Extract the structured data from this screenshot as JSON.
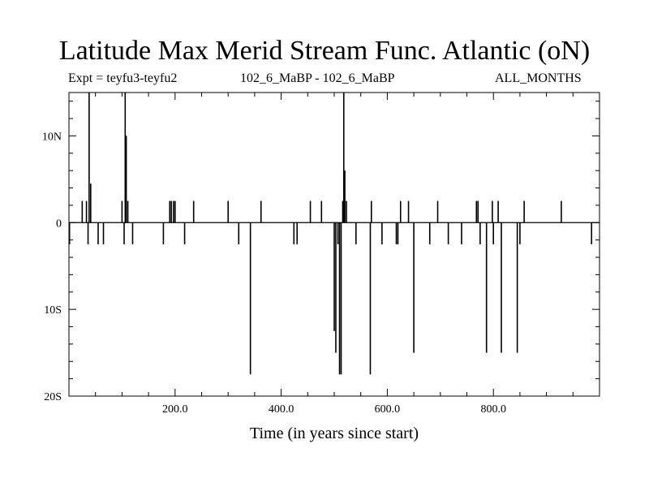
{
  "header": {
    "title": "Latitude Max Merid Stream Func. Atlantic (oN)",
    "expt": "Expt = teyfu3-teyfu2",
    "runs": "102_6_MaBP - 102_6_MaBP",
    "months": "ALL_MONTHS"
  },
  "chart_data": {
    "type": "line",
    "title": "Latitude Max Merid Stream Func. Atlantic (oN)",
    "xlabel": "Time (in years since start)",
    "ylabel": "",
    "xlim": [
      0,
      1000
    ],
    "ylim": [
      -20,
      15
    ],
    "xticks": [
      {
        "value": 200,
        "label": "200.0"
      },
      {
        "value": 400,
        "label": "400.0"
      },
      {
        "value": 600,
        "label": "600.0"
      },
      {
        "value": 800,
        "label": "800.0"
      }
    ],
    "yticks": [
      {
        "value": 10,
        "label": "10N"
      },
      {
        "value": 0,
        "label": "0"
      },
      {
        "value": -10,
        "label": "10S"
      },
      {
        "value": -20,
        "label": "20S"
      }
    ],
    "series": [
      {
        "name": "teyfu3-teyfu2",
        "spikes": [
          {
            "x": 1,
            "y": -2.5
          },
          {
            "x": 25,
            "y": 2.5
          },
          {
            "x": 33,
            "y": 2.5
          },
          {
            "x": 36,
            "y": -2.5
          },
          {
            "x": 38,
            "y": 15
          },
          {
            "x": 41,
            "y": 4.5
          },
          {
            "x": 55,
            "y": -2.5
          },
          {
            "x": 65,
            "y": -2.5
          },
          {
            "x": 100,
            "y": 2.5
          },
          {
            "x": 104,
            "y": -2.5
          },
          {
            "x": 106,
            "y": 15
          },
          {
            "x": 108,
            "y": 10
          },
          {
            "x": 111,
            "y": 2.5
          },
          {
            "x": 120,
            "y": -2.5
          },
          {
            "x": 178,
            "y": -2.5
          },
          {
            "x": 190,
            "y": 2.5
          },
          {
            "x": 193,
            "y": 2.5
          },
          {
            "x": 197,
            "y": 2.5
          },
          {
            "x": 200,
            "y": 2.5
          },
          {
            "x": 218,
            "y": -2.5
          },
          {
            "x": 235,
            "y": 2.5
          },
          {
            "x": 300,
            "y": 2.5
          },
          {
            "x": 320,
            "y": -2.5
          },
          {
            "x": 342,
            "y": -17.5
          },
          {
            "x": 362,
            "y": 2.5
          },
          {
            "x": 424,
            "y": -2.5
          },
          {
            "x": 430,
            "y": -2.5
          },
          {
            "x": 455,
            "y": 2.5
          },
          {
            "x": 476,
            "y": 2.5
          },
          {
            "x": 500,
            "y": -12.5
          },
          {
            "x": 503,
            "y": -15
          },
          {
            "x": 507,
            "y": -2.5
          },
          {
            "x": 510,
            "y": -17.5
          },
          {
            "x": 513,
            "y": -17.5
          },
          {
            "x": 516,
            "y": 2.5
          },
          {
            "x": 518,
            "y": 15
          },
          {
            "x": 520,
            "y": 6
          },
          {
            "x": 523,
            "y": 2.5
          },
          {
            "x": 541,
            "y": -2.5
          },
          {
            "x": 568,
            "y": -17.5
          },
          {
            "x": 570,
            "y": 2.5
          },
          {
            "x": 590,
            "y": -2.5
          },
          {
            "x": 617,
            "y": -2.5
          },
          {
            "x": 620,
            "y": -2.5
          },
          {
            "x": 625,
            "y": 2.5
          },
          {
            "x": 640,
            "y": 2.5
          },
          {
            "x": 650,
            "y": -15
          },
          {
            "x": 680,
            "y": -2.5
          },
          {
            "x": 695,
            "y": 2.5
          },
          {
            "x": 715,
            "y": -2.5
          },
          {
            "x": 740,
            "y": -2.5
          },
          {
            "x": 768,
            "y": 2.5
          },
          {
            "x": 771,
            "y": 2.5
          },
          {
            "x": 775,
            "y": -2.5
          },
          {
            "x": 787,
            "y": -15
          },
          {
            "x": 798,
            "y": 2.5
          },
          {
            "x": 800,
            "y": -2.5
          },
          {
            "x": 809,
            "y": 2.5
          },
          {
            "x": 815,
            "y": -15
          },
          {
            "x": 845,
            "y": -15
          },
          {
            "x": 850,
            "y": -2.5
          },
          {
            "x": 858,
            "y": 2.5
          },
          {
            "x": 928,
            "y": 2.5
          },
          {
            "x": 985,
            "y": -2.5
          }
        ]
      }
    ]
  }
}
